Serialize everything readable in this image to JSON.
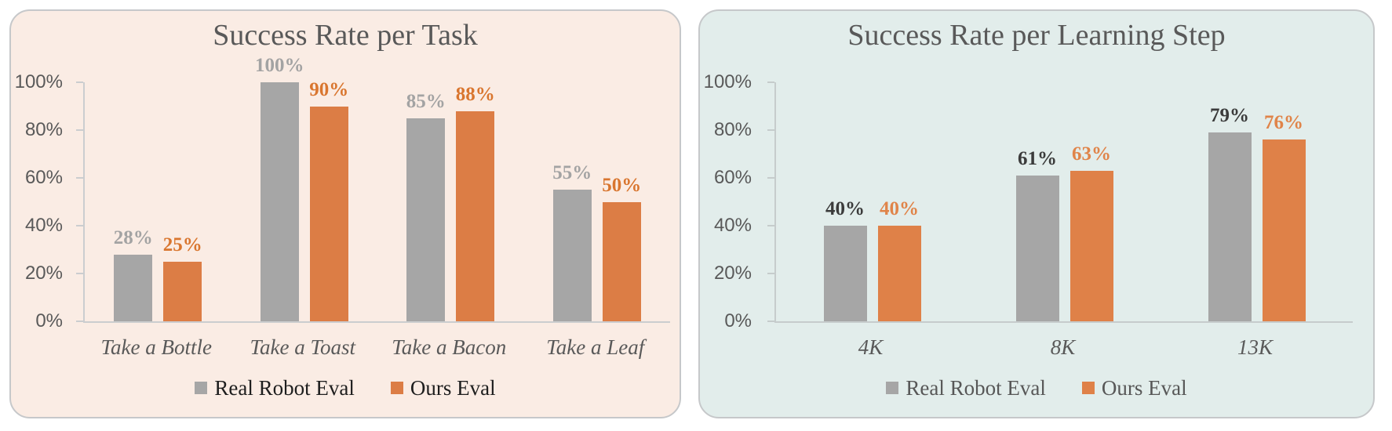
{
  "page": {
    "background": "#FFFFFF"
  },
  "chart_data": [
    {
      "type": "bar",
      "title": "Success Rate per Task",
      "categories": [
        "Take a Bottle",
        "Take a Toast",
        "Take a Bacon",
        "Take a Leaf"
      ],
      "series": [
        {
          "name": "Real Robot Eval",
          "values": [
            28,
            100,
            85,
            55
          ],
          "data_labels": [
            "28%",
            "100%",
            "85%",
            "55%"
          ],
          "color": "#A6A6A6",
          "data_label_color": "#A3A3A3"
        },
        {
          "name": "Ours Eval",
          "values": [
            25,
            90,
            88,
            50
          ],
          "data_labels": [
            "25%",
            "90%",
            "88%",
            "50%"
          ],
          "color": "#DC7D45",
          "data_label_color": "#D9762F"
        }
      ],
      "xlabel": "",
      "ylabel": "",
      "ylim": [
        0,
        100
      ],
      "ytick_values": [
        0,
        20,
        40,
        60,
        80,
        100
      ],
      "ytick_labels": [
        "0%",
        "20%",
        "40%",
        "60%",
        "80%",
        "100%"
      ],
      "grid": false,
      "legend_position": "bottom",
      "panel_bg": "#FAECE4",
      "panel_border_color": "#C6C8CA",
      "title_color": "#595959",
      "axis_line_color": "#CBCDCF",
      "tick_label_color": "#595959",
      "category_label_color": "#595959",
      "legend_text_color": "#1E1E1E"
    },
    {
      "type": "bar",
      "title": "Success Rate per Learning Step",
      "categories": [
        "4K",
        "8K",
        "13K"
      ],
      "series": [
        {
          "name": "Real Robot Eval",
          "values": [
            40,
            61,
            79
          ],
          "data_labels": [
            "40%",
            "61%",
            "79%"
          ],
          "color": "#A6A6A6",
          "data_label_color": "#3B3B3B"
        },
        {
          "name": "Ours Eval",
          "values": [
            40,
            63,
            76
          ],
          "data_labels": [
            "40%",
            "63%",
            "76%"
          ],
          "color": "#DF8148",
          "data_label_color": "#E08449"
        }
      ],
      "xlabel": "",
      "ylabel": "",
      "ylim": [
        0,
        100
      ],
      "ytick_values": [
        0,
        20,
        40,
        60,
        80,
        100
      ],
      "ytick_labels": [
        "0%",
        "20%",
        "40%",
        "60%",
        "80%",
        "100%"
      ],
      "grid": false,
      "legend_position": "bottom",
      "panel_bg": "#E2EDEB",
      "panel_border_color": "#C6C8CA",
      "title_color": "#595959",
      "axis_line_color": "#C6CCCC",
      "tick_label_color": "#595959",
      "category_label_color": "#595959",
      "legend_text_color": "#575757"
    }
  ]
}
